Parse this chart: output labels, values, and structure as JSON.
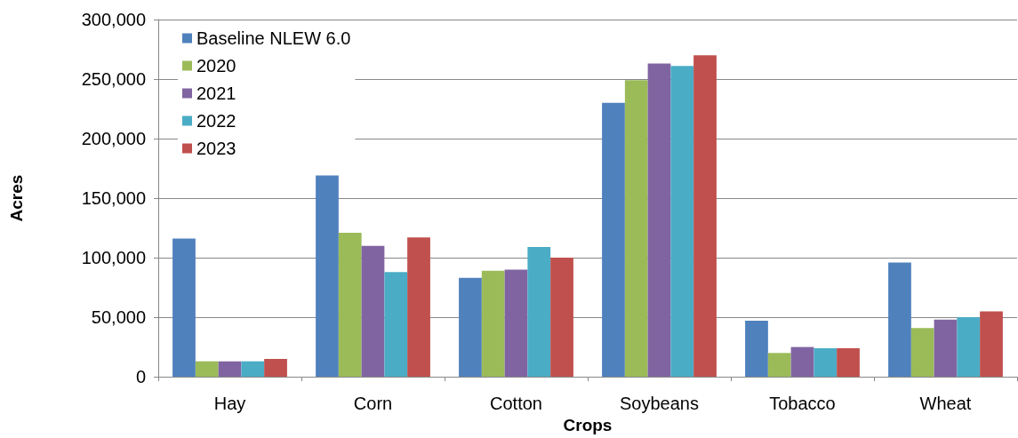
{
  "chart_data": {
    "type": "bar",
    "xlabel": "Crops",
    "ylabel": "Acres",
    "categories": [
      "Hay",
      "Corn",
      "Cotton",
      "Soybeans",
      "Tobacco",
      "Wheat"
    ],
    "series": [
      {
        "name": "Baseline NLEW 6.0",
        "color": "#4f81bd",
        "values": [
          116000,
          169000,
          83000,
          230000,
          47000,
          96000
        ]
      },
      {
        "name": "2020",
        "color": "#9bbb59",
        "values": [
          13000,
          121000,
          89000,
          249000,
          20000,
          41000
        ]
      },
      {
        "name": "2021",
        "color": "#8064a2",
        "values": [
          13000,
          110000,
          90000,
          263000,
          25000,
          48000
        ]
      },
      {
        "name": "2022",
        "color": "#4bacc6",
        "values": [
          13000,
          88000,
          109000,
          261000,
          24000,
          50000
        ]
      },
      {
        "name": "2023",
        "color": "#c0504d",
        "values": [
          15000,
          117000,
          100000,
          270000,
          24000,
          55000
        ]
      }
    ],
    "ylim": [
      0,
      300000
    ],
    "yticks": [
      {
        "value": 0,
        "label": "0"
      },
      {
        "value": 50000,
        "label": "50,000"
      },
      {
        "value": 100000,
        "label": "100,000"
      },
      {
        "value": 150000,
        "label": "150,000"
      },
      {
        "value": 200000,
        "label": "200,000"
      },
      {
        "value": 250000,
        "label": "250,000"
      },
      {
        "value": 300000,
        "label": "300,000"
      }
    ],
    "grid": "y",
    "legend": "top left"
  }
}
